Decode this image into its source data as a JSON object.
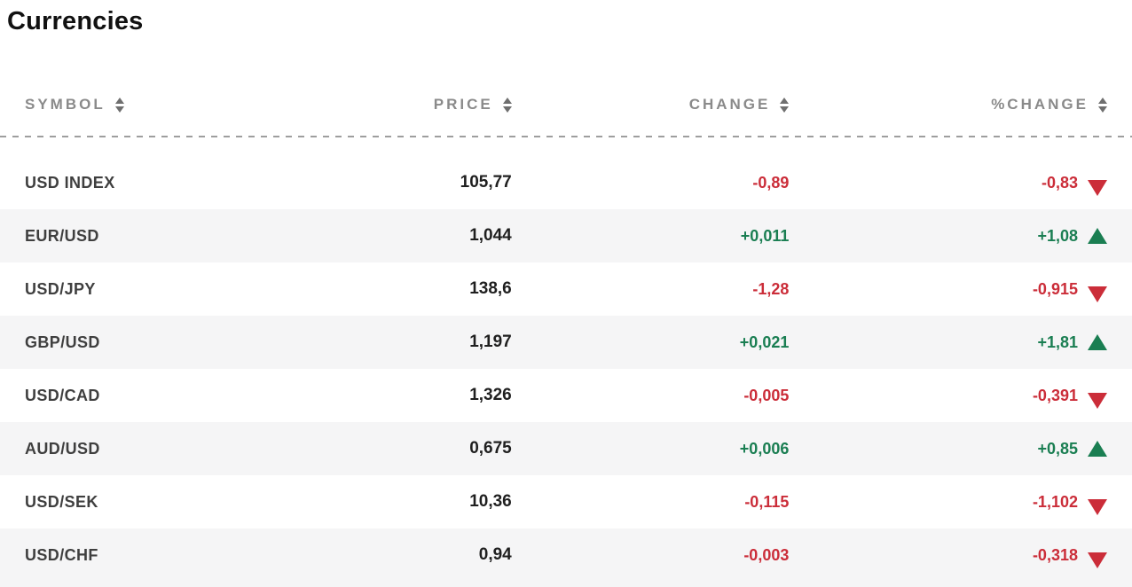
{
  "page": {
    "title": "Currencies"
  },
  "table": {
    "columns": [
      {
        "key": "symbol",
        "label": "SYMBOL"
      },
      {
        "key": "price",
        "label": "PRICE"
      },
      {
        "key": "change",
        "label": "CHANGE"
      },
      {
        "key": "pct_change",
        "label": "%CHANGE"
      }
    ],
    "rows": [
      {
        "symbol": "USD INDEX",
        "price": "105,77",
        "change": "-0,89",
        "pct_change": "-0,83",
        "direction": "down"
      },
      {
        "symbol": "EUR/USD",
        "price": "1,044",
        "change": "+0,011",
        "pct_change": "+1,08",
        "direction": "up"
      },
      {
        "symbol": "USD/JPY",
        "price": "138,6",
        "change": "-1,28",
        "pct_change": "-0,915",
        "direction": "down"
      },
      {
        "symbol": "GBP/USD",
        "price": "1,197",
        "change": "+0,021",
        "pct_change": "+1,81",
        "direction": "up"
      },
      {
        "symbol": "USD/CAD",
        "price": "1,326",
        "change": "-0,005",
        "pct_change": "-0,391",
        "direction": "down"
      },
      {
        "symbol": "AUD/USD",
        "price": "0,675",
        "change": "+0,006",
        "pct_change": "+0,85",
        "direction": "up"
      },
      {
        "symbol": "USD/SEK",
        "price": "10,36",
        "change": "-0,115",
        "pct_change": "-1,102",
        "direction": "down"
      },
      {
        "symbol": "USD/CHF",
        "price": "0,94",
        "change": "-0,003",
        "pct_change": "-0,318",
        "direction": "down"
      }
    ]
  },
  "icons": {
    "sort": "sort-arrows-icon",
    "up": "triangle-up-icon",
    "down": "triangle-down-icon"
  },
  "colors": {
    "positive": "#1a7e52",
    "negative": "#cb2d39",
    "header_text": "#8a8a8a",
    "title_text": "#111111",
    "symbol_text": "#3f3f3f",
    "price_text": "#1f1f1f",
    "row_alt_bg": "#f5f5f6",
    "divider": "#9e9e9e",
    "sort_icon": "#6f6f6f"
  }
}
